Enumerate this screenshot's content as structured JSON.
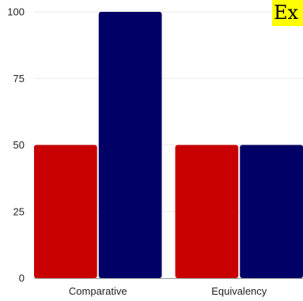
{
  "chart_data": {
    "type": "bar",
    "categories": [
      "Comparative",
      "Equivalency"
    ],
    "series": [
      {
        "values": [
          50,
          50
        ]
      },
      {
        "values": [
          100,
          50
        ]
      }
    ],
    "title": "",
    "xlabel": "",
    "ylabel": "",
    "ylim": [
      0,
      100
    ],
    "yticks": [
      0,
      25,
      50,
      75,
      100
    ],
    "grid": true,
    "legend": "none"
  },
  "colors": {
    "series": [
      "#c80000",
      "#000066"
    ],
    "badge": "#ffff00"
  },
  "badge": {
    "text": "Ex"
  }
}
